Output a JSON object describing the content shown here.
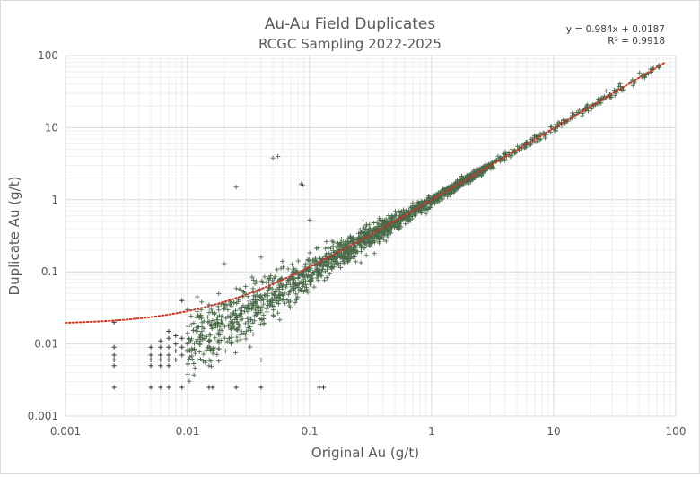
{
  "chart_data": {
    "type": "scatter",
    "title": "Au-Au Field Duplicates",
    "subtitle": "RCGC Sampling 2022-2025",
    "xlabel": "Original Au (g/t)",
    "ylabel": "Duplicate Au (g/t)",
    "x_scale": "log",
    "y_scale": "log",
    "xlim": [
      0.001,
      100
    ],
    "ylim": [
      0.001,
      100
    ],
    "x_ticks": [
      "0.001",
      "0.01",
      "0.1",
      "1",
      "10",
      "100"
    ],
    "y_ticks": [
      "0.001",
      "0.01",
      "0.1",
      "1",
      "10",
      "100"
    ],
    "grid": true,
    "marker": "plus",
    "point_color": "#4a6b4a",
    "trendline": {
      "type": "linear",
      "slope": 0.984,
      "intercept": 0.0187,
      "r_squared": 0.9918,
      "color": "#c0392b",
      "style": "dotted",
      "equation_label": "y = 0.984x + 0.0187",
      "r2_label": "R² = 0.9918"
    },
    "points": [
      [
        0.0025,
        0.0025
      ],
      [
        0.005,
        0.0025
      ],
      [
        0.006,
        0.0025
      ],
      [
        0.007,
        0.0025
      ],
      [
        0.009,
        0.0025
      ],
      [
        0.015,
        0.0025
      ],
      [
        0.016,
        0.0025
      ],
      [
        0.025,
        0.0025
      ],
      [
        0.04,
        0.0025
      ],
      [
        0.12,
        0.0025
      ],
      [
        0.13,
        0.0025
      ],
      [
        0.0025,
        0.005
      ],
      [
        0.0025,
        0.006
      ],
      [
        0.0025,
        0.007
      ],
      [
        0.0025,
        0.009
      ],
      [
        0.0025,
        0.02
      ],
      [
        0.005,
        0.005
      ],
      [
        0.005,
        0.006
      ],
      [
        0.005,
        0.007
      ],
      [
        0.005,
        0.009
      ],
      [
        0.006,
        0.005
      ],
      [
        0.006,
        0.006
      ],
      [
        0.006,
        0.007
      ],
      [
        0.006,
        0.009
      ],
      [
        0.006,
        0.011
      ],
      [
        0.007,
        0.005
      ],
      [
        0.007,
        0.006
      ],
      [
        0.007,
        0.007
      ],
      [
        0.007,
        0.009
      ],
      [
        0.007,
        0.012
      ],
      [
        0.007,
        0.015
      ],
      [
        0.008,
        0.006
      ],
      [
        0.008,
        0.008
      ],
      [
        0.008,
        0.01
      ],
      [
        0.008,
        0.013
      ],
      [
        0.009,
        0.007
      ],
      [
        0.009,
        0.009
      ],
      [
        0.009,
        0.012
      ],
      [
        0.01,
        0.008
      ],
      [
        0.01,
        0.01
      ],
      [
        0.01,
        0.014
      ],
      [
        0.012,
        0.006
      ],
      [
        0.018,
        0.0058
      ],
      [
        0.04,
        0.006
      ],
      [
        0.015,
        0.005
      ],
      [
        0.025,
        1.5
      ],
      [
        0.05,
        3.8
      ],
      [
        0.055,
        4.0
      ],
      [
        0.085,
        1.65
      ],
      [
        0.088,
        1.6
      ],
      [
        0.1,
        0.52
      ],
      [
        0.04,
        0.16
      ],
      [
        0.06,
        0.14
      ],
      [
        0.02,
        0.13
      ],
      [
        0.009,
        0.04
      ],
      [
        0.01,
        0.03
      ],
      [
        0.012,
        0.028
      ],
      [
        0.012,
        0.045
      ],
      [
        0.015,
        0.035
      ],
      [
        0.018,
        0.05
      ]
    ]
  }
}
